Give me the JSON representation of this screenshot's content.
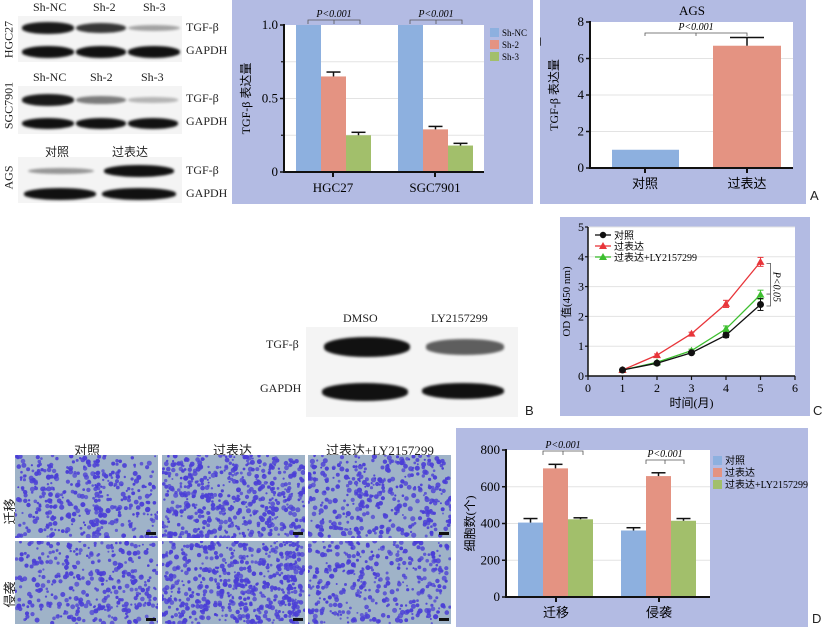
{
  "western_blots": {
    "hgc27": {
      "row_label": "HGC27",
      "lanes": [
        "Sh-NC",
        "Sh-2",
        "Sh-3"
      ],
      "proteins": [
        "TGF-β",
        "GAPDH"
      ],
      "tgf_intensity": [
        0.95,
        0.8,
        0.25
      ]
    },
    "sgc7901": {
      "row_label": "SGC7901",
      "lanes": [
        "Sh-NC",
        "Sh-2",
        "Sh-3"
      ],
      "proteins": [
        "TGF-β",
        "GAPDH"
      ],
      "tgf_intensity": [
        0.95,
        0.45,
        0.15
      ]
    },
    "ags": {
      "row_label": "AGS",
      "lanes": [
        "对照",
        "过表达"
      ],
      "proteins": [
        "TGF-β",
        "GAPDH"
      ],
      "tgf_intensity": [
        0.3,
        1.0
      ]
    },
    "panel_b": {
      "lanes": [
        "DMSO",
        "LY2157299"
      ],
      "proteins": [
        "TGF-β",
        "GAPDH"
      ],
      "tgf_intensity": [
        1.0,
        0.6
      ]
    }
  },
  "panel_letters": {
    "a": "A",
    "b": "B",
    "c": "C",
    "d": "D"
  },
  "microscopy": {
    "columns": [
      "对照",
      "过表达",
      "过表达+LY2157299"
    ],
    "rows": [
      "迁移",
      "侵袭"
    ],
    "density": [
      [
        0.55,
        0.75,
        0.55
      ],
      [
        0.5,
        0.8,
        0.52
      ]
    ]
  },
  "colors": {
    "blue": "#8db0df",
    "salmon": "#e49382",
    "green": "#a2bf6b",
    "red": "#e8353a",
    "lime": "#3dbf2f",
    "black": "#111111",
    "panel_bg": "#b3bbe3"
  },
  "chart_data": [
    {
      "type": "bar",
      "title": "",
      "ylabel": "TGF-β 表达量",
      "xlabel": "",
      "ylim": [
        0,
        1.0
      ],
      "yticks": [
        "0",
        "0.5",
        "1.0"
      ],
      "categories": [
        "HGC27",
        "SGC7901"
      ],
      "series": [
        {
          "name": "Sh-NC",
          "values": [
            1.0,
            1.0
          ],
          "errors": [
            0,
            0
          ]
        },
        {
          "name": "Sh-2",
          "values": [
            0.65,
            0.29
          ],
          "errors": [
            0.03,
            0.02
          ]
        },
        {
          "name": "Sh-3",
          "values": [
            0.25,
            0.18
          ],
          "errors": [
            0.02,
            0.015
          ]
        }
      ],
      "annotations": [
        "P<0.001",
        "P<0.001"
      ],
      "legend": "right"
    },
    {
      "type": "bar",
      "title": "AGS",
      "ylabel": "TGF-β 表达量",
      "xlabel": "",
      "ylim": [
        0,
        8
      ],
      "yticks": [
        "0",
        "2",
        "4",
        "6",
        "8"
      ],
      "categories": [
        "对照",
        "过表达"
      ],
      "values": [
        1.0,
        6.7
      ],
      "errors": [
        0,
        0.45
      ],
      "annotations": [
        "P<0.001"
      ]
    },
    {
      "type": "line",
      "title": "",
      "ylabel": "OD 值(450 nm)",
      "xlabel": "时间(月)",
      "xlim": [
        0,
        6
      ],
      "ylim": [
        0,
        5
      ],
      "xticks": [
        "0",
        "1",
        "2",
        "3",
        "4",
        "5",
        "6"
      ],
      "yticks": [
        "0",
        "1",
        "2",
        "3",
        "4",
        "5"
      ],
      "x": [
        1,
        2,
        3,
        4,
        5
      ],
      "series": [
        {
          "name": "对照",
          "values": [
            0.2,
            0.43,
            0.78,
            1.37,
            2.4
          ],
          "errors": [
            0.02,
            0.03,
            0.05,
            0.08,
            0.2
          ],
          "marker": "circle"
        },
        {
          "name": "过表达",
          "values": [
            0.2,
            0.7,
            1.42,
            2.42,
            3.83
          ],
          "errors": [
            0.02,
            0.04,
            0.05,
            0.12,
            0.15
          ],
          "marker": "triangle"
        },
        {
          "name": "过表达+LY2157299",
          "values": [
            0.2,
            0.46,
            0.85,
            1.58,
            2.73
          ],
          "errors": [
            0.02,
            0.03,
            0.05,
            0.1,
            0.15
          ],
          "marker": "triangle"
        }
      ],
      "annotations": [
        "P<0.05"
      ],
      "legend": "top-left"
    },
    {
      "type": "bar",
      "title": "",
      "ylabel": "细胞数(个)",
      "xlabel": "",
      "ylim": [
        0,
        800
      ],
      "yticks": [
        "0",
        "200",
        "400",
        "600",
        "800"
      ],
      "categories": [
        "迁移",
        "侵袭"
      ],
      "series": [
        {
          "name": "对照",
          "values": [
            405,
            362
          ],
          "errors": [
            22,
            15
          ]
        },
        {
          "name": "过表达",
          "values": [
            700,
            658
          ],
          "errors": [
            22,
            18
          ]
        },
        {
          "name": "过表达+LY2157299",
          "values": [
            423,
            415
          ],
          "errors": [
            8,
            12
          ]
        }
      ],
      "annotations": [
        "P<0.001",
        "P<0.001"
      ],
      "legend": "right"
    }
  ]
}
